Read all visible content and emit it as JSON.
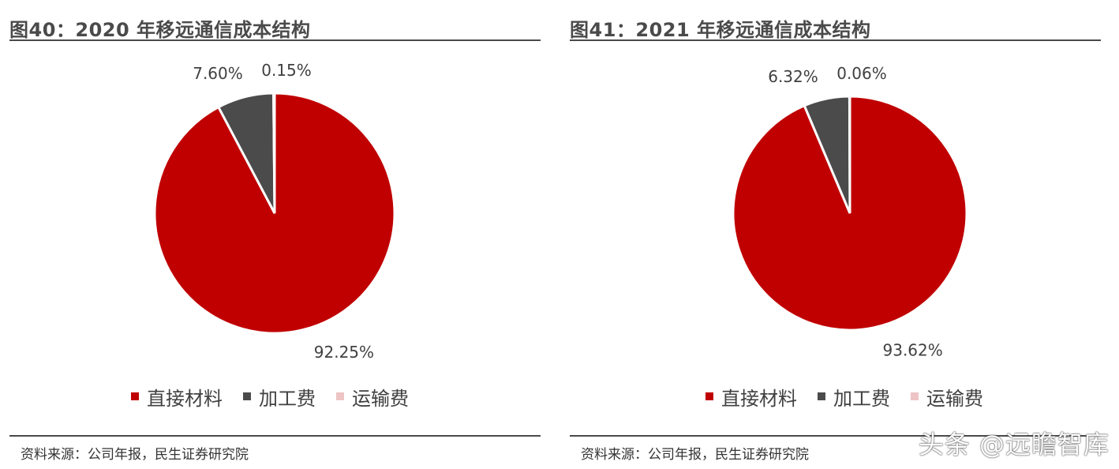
{
  "chart_data": [
    {
      "type": "pie",
      "title": "图40：2020 年移远通信成本结构",
      "categories": [
        "直接材料",
        "加工费",
        "运输费"
      ],
      "values": [
        92.25,
        7.6,
        0.15
      ],
      "data_labels": [
        "92.25%",
        "7.60%",
        "0.15%"
      ],
      "colors": [
        "#c00000",
        "#4b4b4b",
        "#eec4c4"
      ],
      "legend_position": "bottom",
      "source": "资料来源：公司年报，民生证券研究院"
    },
    {
      "type": "pie",
      "title": "图41：2021 年移远通信成本结构",
      "categories": [
        "直接材料",
        "加工费",
        "运输费"
      ],
      "values": [
        93.62,
        6.32,
        0.06
      ],
      "data_labels": [
        "93.62%",
        "6.32%",
        "0.06%"
      ],
      "colors": [
        "#c00000",
        "#4b4b4b",
        "#eec4c4"
      ],
      "legend_position": "bottom",
      "source": "资料来源：公司年报，民生证券研究院"
    }
  ],
  "watermark": "头条 @远瞻智库"
}
